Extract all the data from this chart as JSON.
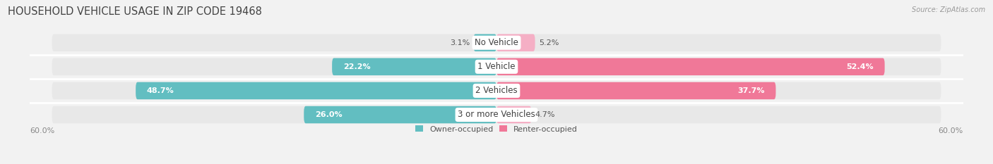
{
  "title": "HOUSEHOLD VEHICLE USAGE IN ZIP CODE 19468",
  "source": "Source: ZipAtlas.com",
  "categories": [
    "No Vehicle",
    "1 Vehicle",
    "2 Vehicles",
    "3 or more Vehicles"
  ],
  "owner_values": [
    3.1,
    22.2,
    48.7,
    26.0
  ],
  "renter_values": [
    5.2,
    52.4,
    37.7,
    4.7
  ],
  "owner_color": "#62bec1",
  "renter_color": "#f07898",
  "renter_color_light": "#f5afc5",
  "bar_bg_color": "#e8e8e8",
  "row_bg_color": "#eeeeee",
  "max_value": 60.0,
  "axis_label": "60.0%",
  "legend_owner": "Owner-occupied",
  "legend_renter": "Renter-occupied",
  "title_fontsize": 10.5,
  "label_fontsize": 8.0,
  "cat_fontsize": 8.5,
  "figsize": [
    14.06,
    2.33
  ],
  "dpi": 100,
  "background_color": "#f2f2f2"
}
